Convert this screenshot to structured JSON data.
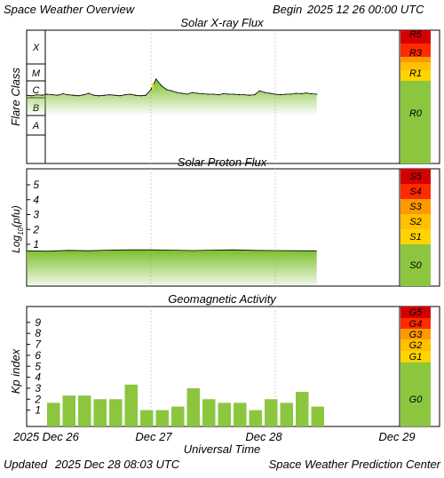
{
  "header": {
    "app_title": "Space Weather Overview",
    "begin_label": "Begin",
    "begin_value": "2025 12 26 00:00 UTC"
  },
  "footer": {
    "updated_label": "Updated",
    "updated_value": "2025 Dec 28 08:03 UTC",
    "source": "Space Weather Prediction Center"
  },
  "x_axis": {
    "label": "Universal Time",
    "ticks": [
      "2025 Dec 26",
      "Dec 27",
      "Dec 28",
      "Dec 29"
    ]
  },
  "colors": {
    "series_green": "#8cc63f",
    "scale_red_dark": "#d40000",
    "scale_red": "#ff2a00",
    "scale_orange": "#ff9900",
    "scale_yellow": "#ffd400",
    "scale_green": "#8cc63f"
  },
  "chart_data": [
    {
      "type": "area",
      "title": "Solar X-ray Flux",
      "ylabel": "Flare Class",
      "y_scale": "log",
      "class_labels": [
        "X",
        "M",
        "C",
        "B",
        "A"
      ],
      "x_range_hours": [
        0,
        72
      ],
      "x": [
        0,
        1,
        2,
        3,
        4,
        5,
        6,
        7,
        8,
        9,
        10,
        11,
        12,
        13,
        14,
        15,
        16,
        17,
        18,
        19,
        20,
        21,
        22,
        23,
        24,
        25,
        26,
        27,
        28,
        29,
        30,
        31,
        32,
        33,
        34,
        35,
        36,
        37,
        38,
        39,
        40,
        41,
        42,
        43,
        44,
        45,
        46,
        47,
        48,
        49,
        50,
        51,
        52,
        53,
        54,
        55,
        56
      ],
      "values": [
        1.4,
        1.3,
        1.5,
        1.4,
        1.6,
        1.5,
        1.4,
        1.7,
        1.5,
        1.4,
        1.3,
        1.5,
        1.8,
        1.4,
        1.3,
        1.4,
        1.5,
        1.4,
        1.3,
        1.5,
        1.6,
        1.4,
        1.3,
        1.4,
        3.0,
        12.0,
        5.0,
        3.0,
        2.5,
        2.0,
        1.8,
        1.6,
        2.0,
        1.8,
        1.7,
        1.6,
        1.6,
        1.5,
        1.7,
        1.6,
        1.6,
        1.5,
        1.5,
        1.4,
        1.5,
        2.5,
        2.0,
        1.8,
        1.6,
        1.5,
        1.6,
        1.6,
        1.8,
        1.7,
        1.9,
        1.7,
        1.6
      ],
      "values_unit": "C-class multiple",
      "scale": [
        {
          "label": "R5",
          "color": "#d40000"
        },
        {
          "label": "R3",
          "color": "#ff9900"
        },
        {
          "label": "R1",
          "color": "#ffd400"
        },
        {
          "label": "R0",
          "color": "#8cc63f"
        }
      ]
    },
    {
      "type": "area",
      "title": "Solar Proton Flux",
      "ylabel": "Log10(pfu)",
      "y_ticks": [
        1,
        2,
        3,
        4,
        5
      ],
      "ylim": [
        -2,
        5.8
      ],
      "x_range_hours": [
        0,
        72
      ],
      "x": [
        0,
        4,
        8,
        12,
        16,
        20,
        24,
        28,
        32,
        36,
        40,
        44,
        48,
        52,
        56
      ],
      "values": [
        -1.05,
        -1.07,
        -1.02,
        -1.04,
        -1.0,
        -0.98,
        -0.98,
        -1.0,
        -1.03,
        -1.0,
        -0.98,
        -1.02,
        -1.03,
        -1.04,
        -1.05
      ],
      "scale": [
        {
          "label": "S5",
          "color": "#d40000"
        },
        {
          "label": "S4",
          "color": "#ff2a00"
        },
        {
          "label": "S3",
          "color": "#ff9900"
        },
        {
          "label": "S2",
          "color": "#ffc000"
        },
        {
          "label": "S1",
          "color": "#ffd400"
        },
        {
          "label": "S0",
          "color": "#8cc63f"
        }
      ]
    },
    {
      "type": "bar",
      "title": "Geomagnetic Activity",
      "ylabel": "Kp index",
      "y_ticks": [
        1,
        2,
        3,
        4,
        5,
        6,
        7,
        8,
        9
      ],
      "ylim": [
        0,
        10
      ],
      "x_range_hours": [
        0,
        72
      ],
      "bar_start_hours": [
        0,
        3,
        6,
        9,
        12,
        15,
        18,
        21,
        24,
        27,
        30,
        33,
        36,
        39,
        42,
        45,
        48,
        51
      ],
      "values": [
        1.67,
        2.33,
        2.33,
        2.0,
        2.0,
        3.33,
        1.0,
        1.0,
        1.33,
        3.0,
        2.0,
        1.67,
        1.67,
        1.0,
        2.0,
        1.67,
        2.67,
        1.33
      ],
      "scale": [
        {
          "label": "G5",
          "color": "#d40000"
        },
        {
          "label": "G4",
          "color": "#ff2a00"
        },
        {
          "label": "G3",
          "color": "#ff9900"
        },
        {
          "label": "G2",
          "color": "#ffc000"
        },
        {
          "label": "G1",
          "color": "#ffd400"
        },
        {
          "label": "G0",
          "color": "#8cc63f"
        }
      ]
    }
  ]
}
